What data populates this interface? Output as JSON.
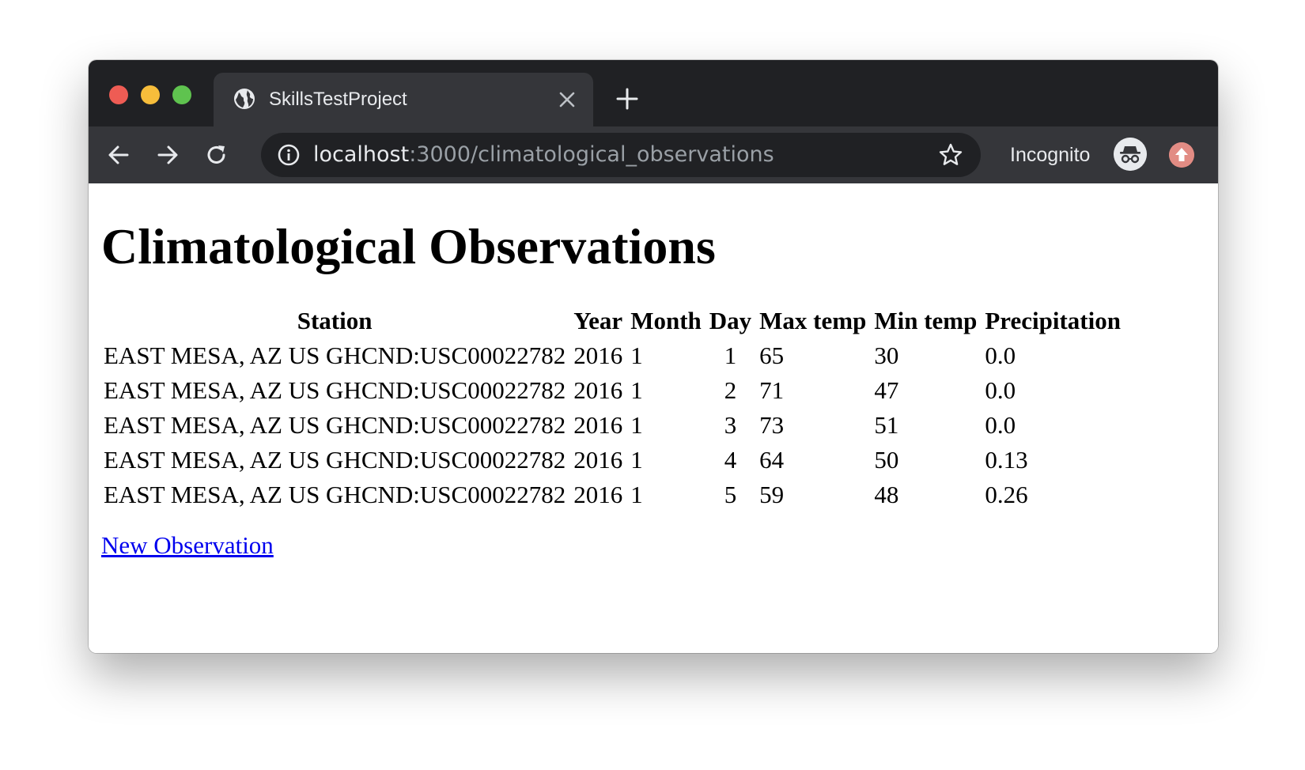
{
  "browser": {
    "tab_title": "SkillsTestProject",
    "url_host": "localhost",
    "url_path": ":3000/climatological_observations",
    "profile_label": "Incognito",
    "icons": [
      "globe-icon",
      "close-icon",
      "plus-icon",
      "back-icon",
      "forward-icon",
      "reload-icon",
      "info-icon",
      "star-icon",
      "incognito-icon",
      "update-icon"
    ]
  },
  "page": {
    "title": "Climatological Observations",
    "columns": [
      "Station",
      "Year",
      "Month",
      "Day",
      "Max temp",
      "Min temp",
      "Precipitation"
    ],
    "rows": [
      {
        "station": "EAST MESA, AZ US GHCND:USC00022782",
        "year": "2016",
        "month": "1",
        "day": "1",
        "max_temp": "65",
        "min_temp": "30",
        "precipitation": "0.0"
      },
      {
        "station": "EAST MESA, AZ US GHCND:USC00022782",
        "year": "2016",
        "month": "1",
        "day": "2",
        "max_temp": "71",
        "min_temp": "47",
        "precipitation": "0.0"
      },
      {
        "station": "EAST MESA, AZ US GHCND:USC00022782",
        "year": "2016",
        "month": "1",
        "day": "3",
        "max_temp": "73",
        "min_temp": "51",
        "precipitation": "0.0"
      },
      {
        "station": "EAST MESA, AZ US GHCND:USC00022782",
        "year": "2016",
        "month": "1",
        "day": "4",
        "max_temp": "64",
        "min_temp": "50",
        "precipitation": "0.13"
      },
      {
        "station": "EAST MESA, AZ US GHCND:USC00022782",
        "year": "2016",
        "month": "1",
        "day": "5",
        "max_temp": "59",
        "min_temp": "48",
        "precipitation": "0.26"
      }
    ],
    "new_link": "New Observation"
  },
  "colors": {
    "titlebar": "#202124",
    "toolbar": "#35363a",
    "link": "#0000ee"
  }
}
